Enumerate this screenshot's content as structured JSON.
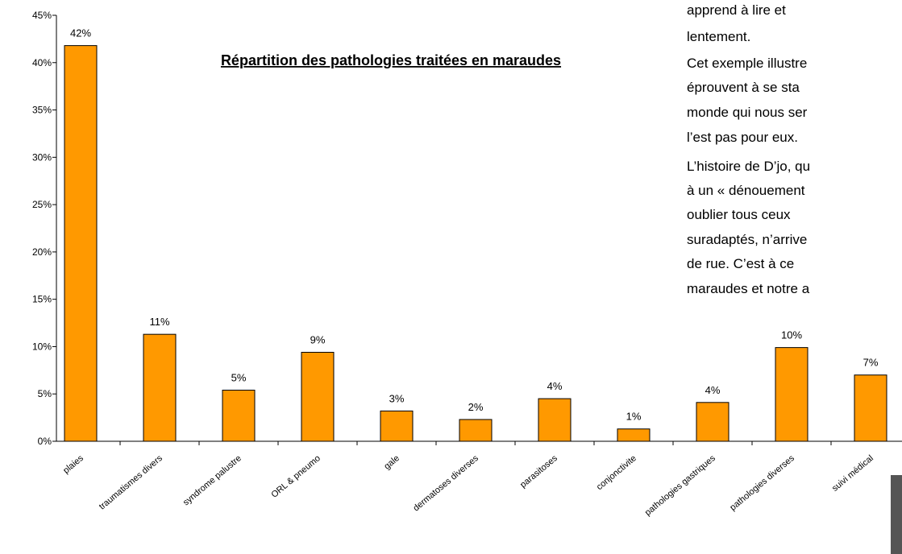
{
  "chart_data": {
    "type": "bar",
    "title": "Répartition des pathologies traitées en maraudes",
    "categories": [
      "plaies",
      "traumatismes divers",
      "syndrome palustre",
      "ORL & pneumo",
      "gale",
      "dermatoses diverses",
      "parasitoses",
      "conjonctivite",
      "pathologies gastriques",
      "pathologies diverses",
      "suivi médical"
    ],
    "values": [
      41.8,
      11.3,
      5.4,
      9.4,
      3.2,
      2.3,
      4.5,
      1.3,
      4.1,
      9.9,
      7.0
    ],
    "value_labels": [
      "42%",
      "11%",
      "5%",
      "9%",
      "3%",
      "2%",
      "4%",
      "1%",
      "4%",
      "10%",
      "7%"
    ],
    "color": "#ff9900",
    "ylim": [
      0,
      45
    ],
    "yticks": [
      {
        "value": 0,
        "label": "0%"
      },
      {
        "value": 5,
        "label": "5%"
      },
      {
        "value": 10,
        "label": "10%"
      },
      {
        "value": 15,
        "label": "15%"
      },
      {
        "value": 20,
        "label": "20%"
      },
      {
        "value": 25,
        "label": "25%"
      },
      {
        "value": 30,
        "label": "30%"
      },
      {
        "value": 35,
        "label": "35%"
      },
      {
        "value": 40,
        "label": "40%"
      },
      {
        "value": 45,
        "label": "45%"
      }
    ],
    "grid": false
  },
  "side_text": [
    "apprend à lire et",
    "lentement.",
    "Cet exemple illustre",
    "éprouvent à se sta",
    "monde qui nous ser",
    "l’est pas pour eux.",
    "L’histoire de D’jo, qu",
    "à un « dénouement",
    "oublier tous ceux",
    "suradaptés, n’arrive",
    "de rue. C’est à ce",
    "maraudes et notre a"
  ]
}
